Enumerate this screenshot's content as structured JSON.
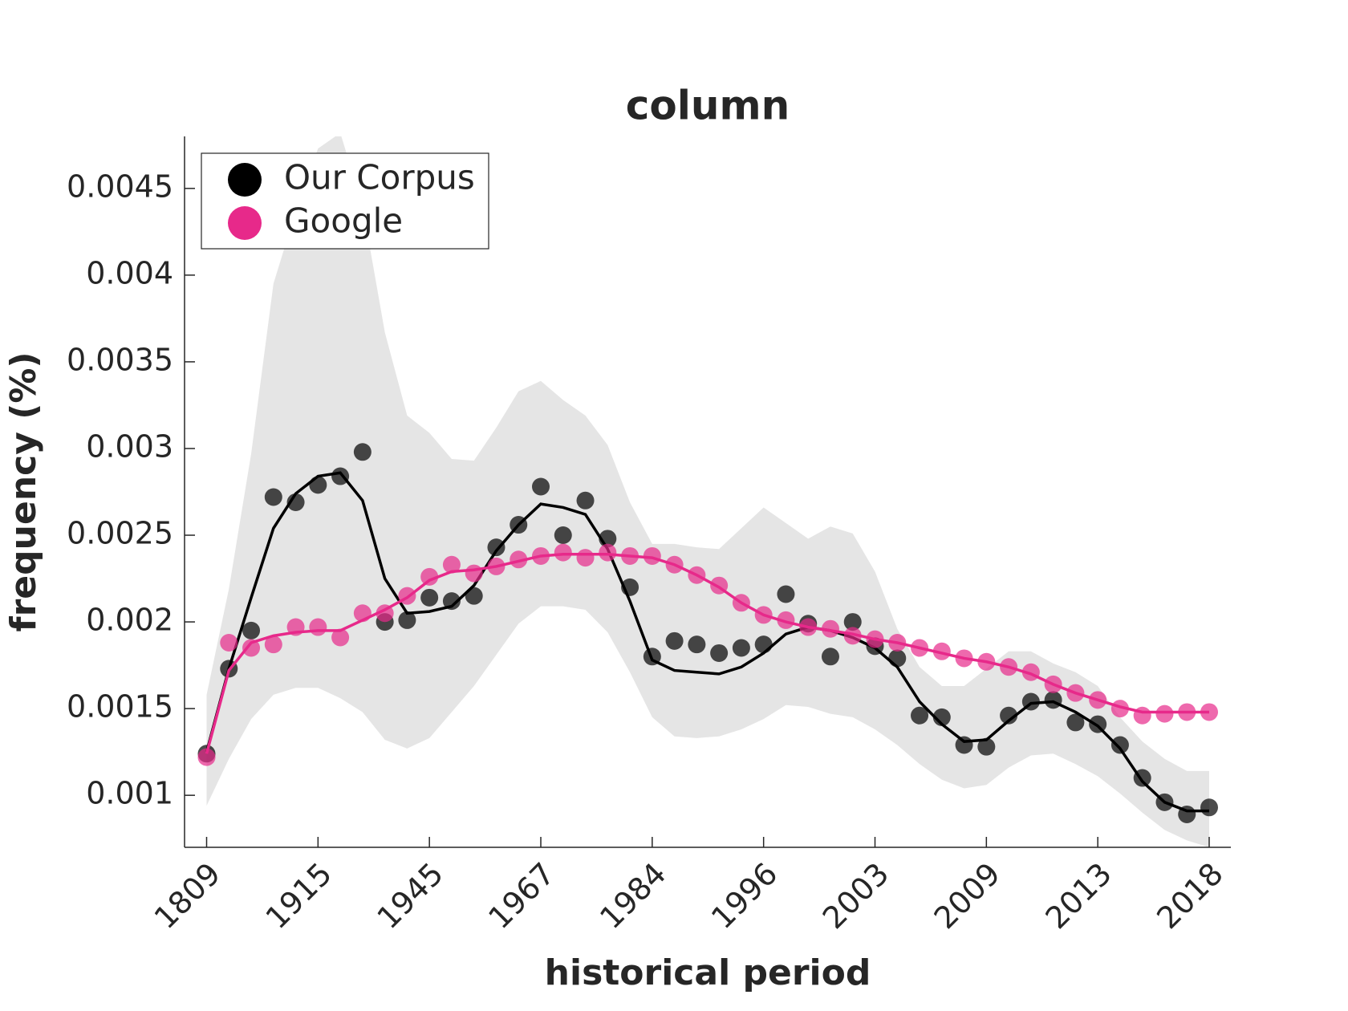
{
  "chart_data": {
    "type": "scatter",
    "title": "column",
    "x_label": "historical period",
    "y_label": "frequency (%)",
    "categories": [
      "1809",
      null,
      null,
      null,
      null,
      "1915",
      null,
      null,
      null,
      null,
      "1945",
      null,
      null,
      null,
      null,
      "1967",
      null,
      null,
      null,
      null,
      "1984",
      null,
      null,
      null,
      null,
      "1996",
      null,
      null,
      null,
      null,
      "2003",
      null,
      null,
      null,
      null,
      "2009",
      null,
      null,
      null,
      null,
      "2013",
      null,
      null,
      null,
      null,
      "2018"
    ],
    "ylim": [
      0.0007,
      0.0048
    ],
    "yticks": [
      0.001,
      0.0015,
      0.002,
      0.0025,
      0.003,
      0.0035,
      0.004,
      0.0045
    ],
    "legend": "upper left",
    "band": {
      "color": "#e5e5e5",
      "upper": [
        0.00158,
        0.00219,
        0.00297,
        0.00395,
        0.00437,
        0.00473,
        0.00482,
        0.0044,
        0.00367,
        0.00319,
        0.00309,
        0.00294,
        0.00293,
        0.00312,
        0.00333,
        0.00339,
        0.00328,
        0.00319,
        0.00302,
        0.00269,
        0.00245,
        0.00245,
        0.00243,
        0.00242,
        0.00254,
        0.00266,
        0.00257,
        0.00248,
        0.00255,
        0.00251,
        0.00229,
        0.00196,
        0.00174,
        0.00163,
        0.00163,
        0.00173,
        0.00183,
        0.00183,
        0.00176,
        0.00171,
        0.00163,
        0.00145,
        0.00131,
        0.00121,
        0.00114,
        0.00114
      ],
      "lower": [
        0.00094,
        0.00121,
        0.00144,
        0.00158,
        0.00162,
        0.00162,
        0.00156,
        0.00148,
        0.00132,
        0.00127,
        0.00133,
        0.00148,
        0.00163,
        0.00181,
        0.00199,
        0.00209,
        0.00209,
        0.00207,
        0.00194,
        0.00171,
        0.00145,
        0.00134,
        0.00133,
        0.00134,
        0.00138,
        0.00144,
        0.00152,
        0.00151,
        0.00147,
        0.00145,
        0.00138,
        0.00129,
        0.00118,
        0.00109,
        0.00104,
        0.00106,
        0.00116,
        0.00123,
        0.00124,
        0.00118,
        0.00111,
        0.00101,
        0.0009,
        0.0008,
        0.00074,
        0.0007
      ]
    },
    "series": [
      {
        "name": "Our Corpus",
        "color": "#000000",
        "values": [
          0.00124,
          0.00173,
          0.00195,
          0.00272,
          0.00269,
          0.00279,
          0.00284,
          0.00298,
          0.002,
          0.00201,
          0.00214,
          0.00212,
          0.00215,
          0.00243,
          0.00256,
          0.00278,
          0.0025,
          0.0027,
          0.00248,
          0.0022,
          0.0018,
          0.00189,
          0.00187,
          0.00182,
          0.00185,
          0.00187,
          0.00216,
          0.00199,
          0.0018,
          0.002,
          0.00186,
          0.00179,
          0.00146,
          0.00145,
          0.00129,
          0.00128,
          0.00146,
          0.00154,
          0.00155,
          0.00142,
          0.00141,
          0.00129,
          0.0011,
          0.00096,
          0.00089,
          0.00093
        ],
        "smoothed": [
          0.00125,
          0.00173,
          0.00214,
          0.00254,
          0.00274,
          0.00284,
          0.00286,
          0.0027,
          0.00225,
          0.00205,
          0.00206,
          0.00209,
          0.00221,
          0.00241,
          0.00256,
          0.00268,
          0.00266,
          0.00262,
          0.00242,
          0.00212,
          0.00178,
          0.00172,
          0.00171,
          0.0017,
          0.00174,
          0.00182,
          0.00193,
          0.00197,
          0.00195,
          0.00191,
          0.00185,
          0.00174,
          0.00154,
          0.00141,
          0.00131,
          0.00132,
          0.00143,
          0.00153,
          0.00154,
          0.00148,
          0.0014,
          0.00127,
          0.00108,
          0.00096,
          0.00091,
          0.00091
        ]
      },
      {
        "name": "Google",
        "color": "#e7298a",
        "values": [
          0.00122,
          0.00188,
          0.00185,
          0.00187,
          0.00197,
          0.00197,
          0.00191,
          0.00205,
          0.00205,
          0.00215,
          0.00226,
          0.00233,
          0.00228,
          0.00232,
          0.00236,
          0.00238,
          0.0024,
          0.00237,
          0.0024,
          0.00238,
          0.00238,
          0.00233,
          0.00227,
          0.00221,
          0.00211,
          0.00204,
          0.00201,
          0.00197,
          0.00196,
          0.00192,
          0.0019,
          0.00188,
          0.00185,
          0.00183,
          0.00179,
          0.00177,
          0.00174,
          0.00171,
          0.00164,
          0.00159,
          0.00155,
          0.0015,
          0.00146,
          0.00147,
          0.00148,
          0.00148
        ],
        "smoothed": [
          0.00124,
          0.00172,
          0.00188,
          0.00192,
          0.00194,
          0.00195,
          0.00195,
          0.00201,
          0.00207,
          0.00214,
          0.00224,
          0.00229,
          0.0023,
          0.00232,
          0.00235,
          0.00238,
          0.00239,
          0.00239,
          0.00239,
          0.00238,
          0.00237,
          0.00233,
          0.00227,
          0.0022,
          0.00211,
          0.00204,
          0.002,
          0.00197,
          0.00195,
          0.00193,
          0.0019,
          0.00188,
          0.00185,
          0.00182,
          0.00179,
          0.00177,
          0.00174,
          0.0017,
          0.00164,
          0.00159,
          0.00155,
          0.00151,
          0.00148,
          0.00148,
          0.00148,
          0.00148
        ]
      }
    ]
  }
}
